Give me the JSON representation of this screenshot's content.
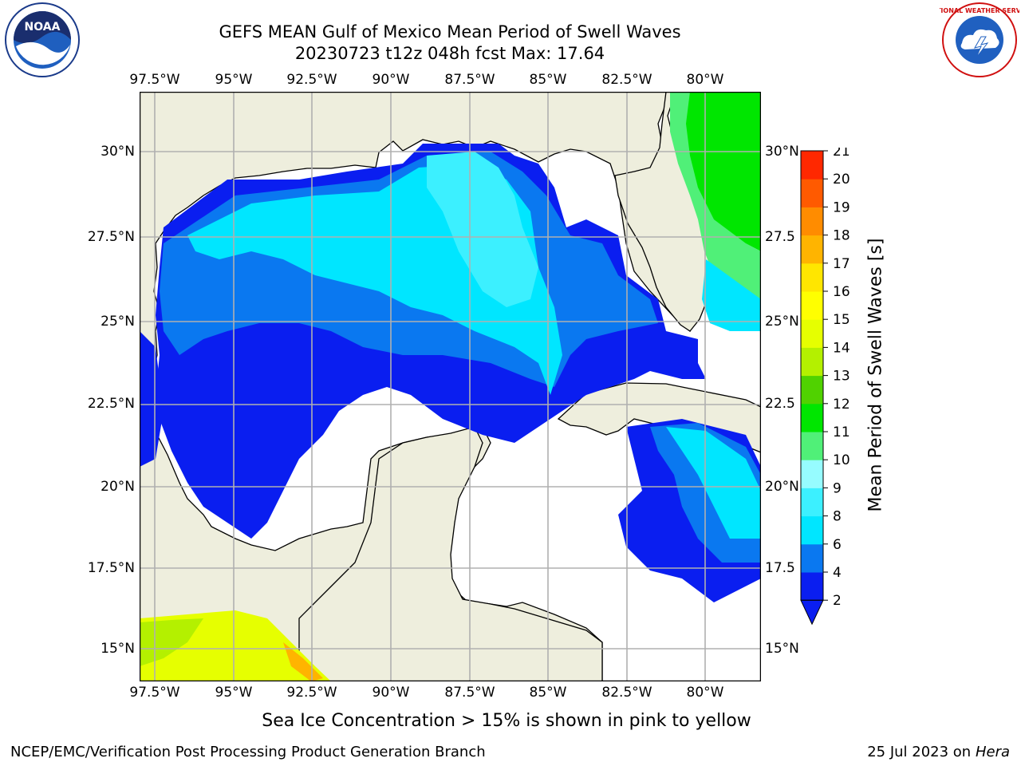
{
  "title": {
    "line1": "GEFS MEAN Gulf of Mexico Mean Period of Swell Waves",
    "line2": "20230723 t12z 048h fcst   Max: 17.64"
  },
  "map": {
    "lon_labels": [
      "97.5°W",
      "95°W",
      "92.5°W",
      "90°W",
      "87.5°W",
      "85°W",
      "82.5°W",
      "80°W"
    ],
    "lat_labels_left": [
      "30°N",
      "27.5°N",
      "25°N",
      "22.5°N",
      "20°N",
      "17.5°N",
      "15°N"
    ],
    "lat_labels_right": [
      "30°N",
      "27.5",
      "25°N",
      "22.5",
      "20°N",
      "17.5",
      "15°N"
    ],
    "colors": {
      "land": "#eeeedd",
      "ocean_nodata": "#ffffff",
      "grid": "#b0b0b0"
    }
  },
  "colorbar": {
    "label": "Mean Period of Swell Waves [s]",
    "ticks": [
      "2",
      "4",
      "6",
      "8",
      "9",
      "10",
      "11",
      "12",
      "13",
      "14",
      "15",
      "16",
      "17",
      "18",
      "19",
      "20",
      "21"
    ],
    "colors": [
      "#0a1ef0",
      "#0a78f0",
      "#00e6ff",
      "#3cf0ff",
      "#96fcff",
      "#50f078",
      "#00e600",
      "#50d200",
      "#b4f000",
      "#e6ff00",
      "#ffff00",
      "#ffe600",
      "#ffb400",
      "#ff8c00",
      "#ff5a00",
      "#ff2800",
      "#ff0000"
    ]
  },
  "note": "Sea Ice Concentration > 15% is shown in pink to yellow",
  "footer": {
    "left": "NCEP/EMC/Verification Post Processing Product Generation Branch",
    "right_date": "25 Jul 2023 on ",
    "right_host": "Hera"
  },
  "logos": {
    "noaa_text": "NOAA",
    "nws_text": "NATIONAL WEATHER SERVICE"
  }
}
